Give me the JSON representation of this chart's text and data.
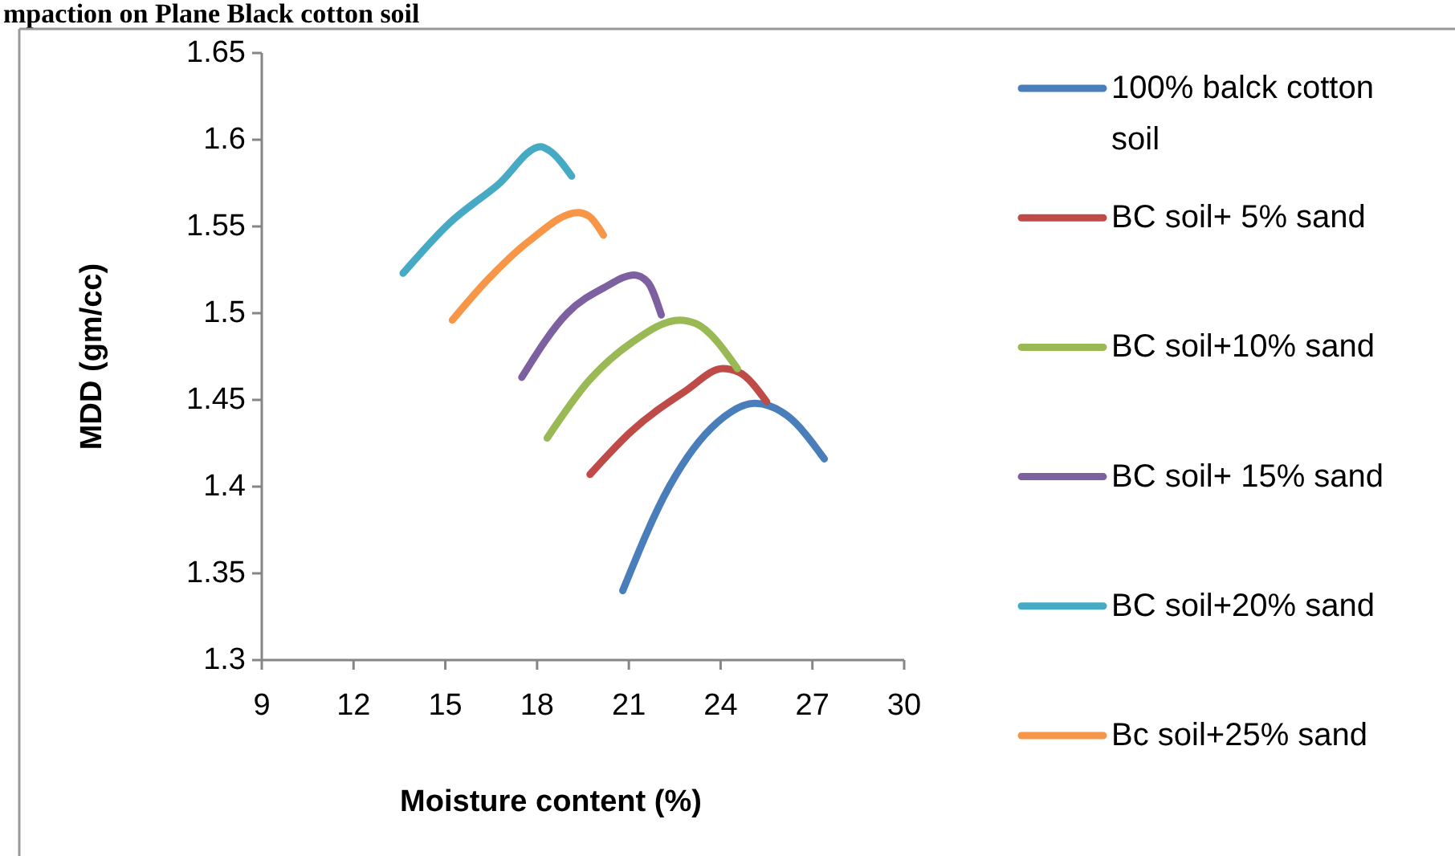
{
  "chart_data": {
    "type": "line",
    "title": "mpaction on Plane Black cotton soil",
    "xlabel": "Moisture content (%)",
    "ylabel": "MDD (gm/cc)",
    "xlim": [
      9,
      30
    ],
    "xticks": [
      9,
      12,
      15,
      18,
      21,
      24,
      27,
      30
    ],
    "ylim": [
      1.3,
      1.65
    ],
    "yticks": [
      1.3,
      1.35,
      1.4,
      1.45,
      1.5,
      1.55,
      1.6,
      1.65
    ],
    "grid": false,
    "legend": "right",
    "marker": "none",
    "series": [
      {
        "name": "100% balck cotton soil",
        "color": "#4a7ebb",
        "x": [
          20.8,
          22.32,
          23.89,
          25.12,
          26.17,
          27.39
        ],
        "values": [
          1.34,
          1.4,
          1.437,
          1.448,
          1.441,
          1.416
        ]
      },
      {
        "name": "BC soil+ 5% sand",
        "color": "#be4b48",
        "x": [
          19.73,
          21.09,
          22.84,
          24.07,
          24.59,
          25.5
        ],
        "values": [
          1.407,
          1.432,
          1.455,
          1.468,
          1.466,
          1.449
        ]
      },
      {
        "name": "BC soil+10% sand",
        "color": "#98b954",
        "x": [
          18.33,
          19.69,
          21.09,
          22.66,
          23.19,
          24.55
        ],
        "values": [
          1.428,
          1.461,
          1.483,
          1.496,
          1.494,
          1.468
        ]
      },
      {
        "name": "BC soil+ 15% sand",
        "color": "#7d60a0",
        "x": [
          17.5,
          18.99,
          20.22,
          21.18,
          21.61,
          22.06
        ],
        "values": [
          1.463,
          1.5,
          1.515,
          1.522,
          1.518,
          1.499
        ]
      },
      {
        "name": "BC soil+20% sand",
        "color": "#46aac5",
        "x": [
          13.62,
          15.14,
          16.72,
          18.12,
          18.38,
          19.13
        ],
        "values": [
          1.523,
          1.552,
          1.574,
          1.596,
          1.594,
          1.579
        ]
      },
      {
        "name": "Bc soil+25% sand",
        "color": "#f79646",
        "x": [
          15.23,
          16.37,
          17.77,
          19.34,
          19.69,
          20.17
        ],
        "values": [
          1.496,
          1.519,
          1.542,
          1.558,
          1.556,
          1.545
        ]
      }
    ]
  }
}
